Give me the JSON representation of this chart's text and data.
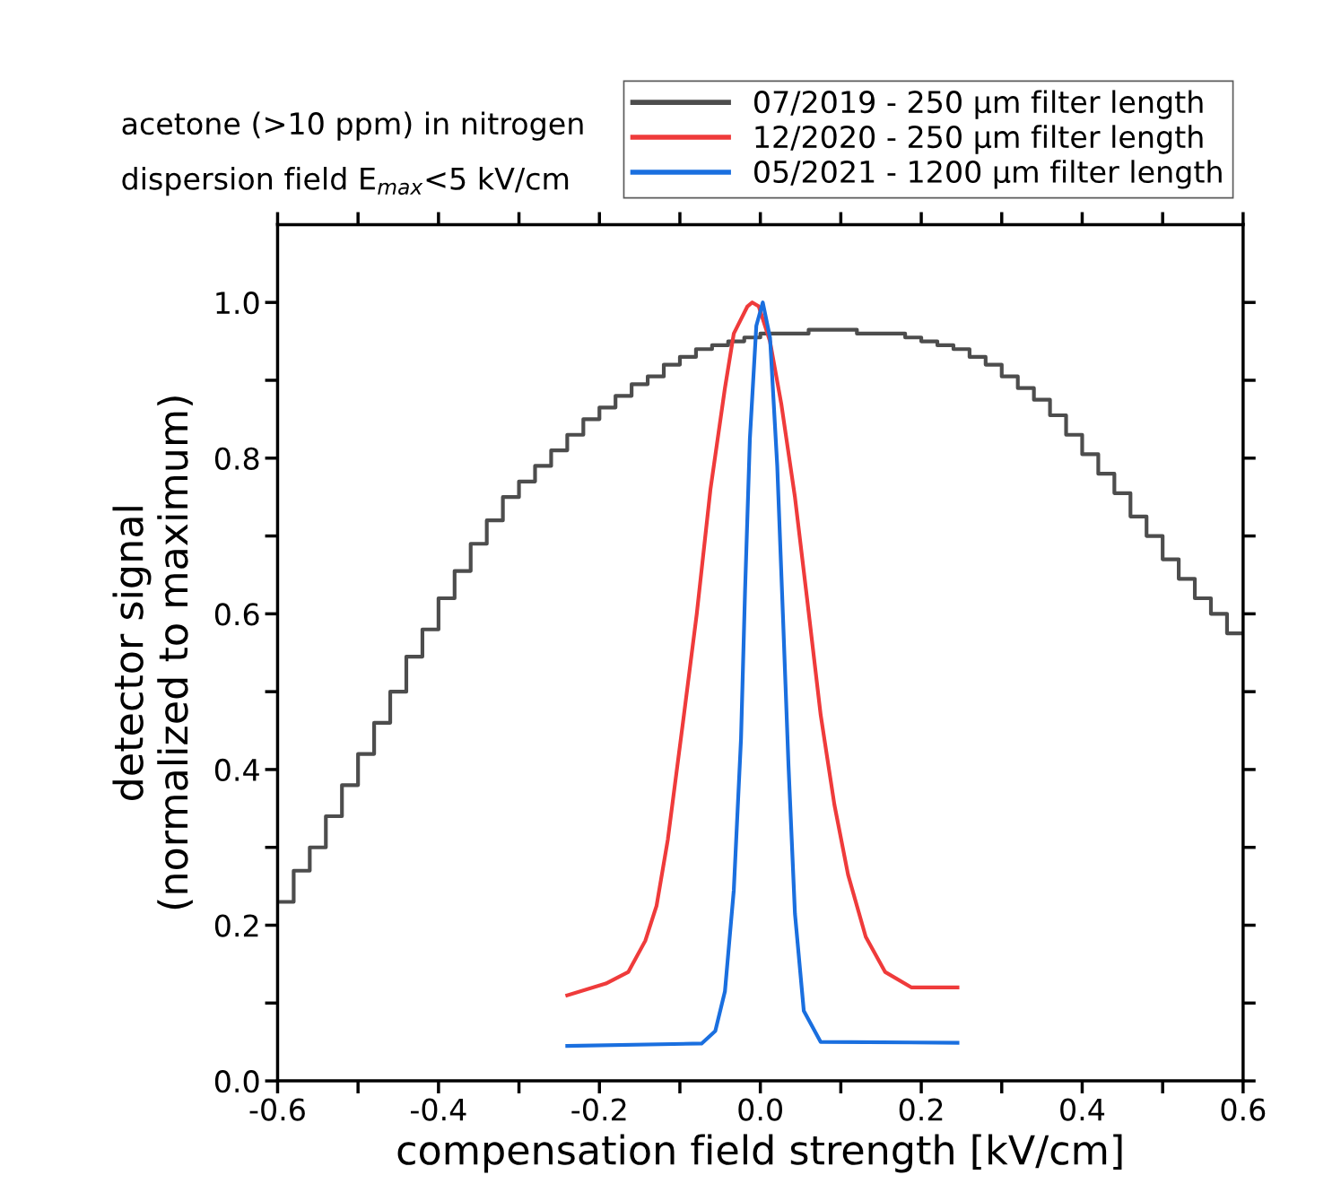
{
  "chart_data": {
    "type": "line",
    "xlabel": "compensation field strength [kV/cm]",
    "ylabel": "detector signal\n(normalized to maximum)",
    "annotations": [
      "acetone (>10 ppm) in nitrogen",
      "dispersion field E$_{max}$<5 kV/cm"
    ],
    "xlim": [
      -0.6,
      0.6
    ],
    "ylim": [
      0,
      1.1
    ],
    "xticks": [
      -0.6,
      {
        "value": -0.5,
        "label": null
      },
      -0.4,
      {
        "value": -0.3,
        "label": null
      },
      -0.2,
      {
        "value": -0.1,
        "label": null
      },
      {
        "value": 0,
        "label": "0.0"
      },
      {
        "value": 0.1,
        "label": null
      },
      0.2,
      {
        "value": 0.3,
        "label": null
      },
      0.4,
      {
        "value": 0.5,
        "label": null
      },
      0.6
    ],
    "yticks": [
      {
        "value": 0,
        "label": "0.0"
      },
      {
        "value": 0.1,
        "label": null
      },
      0.2,
      {
        "value": 0.3,
        "label": null
      },
      0.4,
      {
        "value": 0.5,
        "label": null
      },
      0.6,
      {
        "value": 0.7,
        "label": null
      },
      0.8,
      {
        "value": 0.9,
        "label": null
      },
      {
        "value": 1,
        "label": "1.0"
      }
    ],
    "legend": "top right",
    "grid": false,
    "marker": "none",
    "line_style": "solid",
    "series": [
      {
        "name": "07/2019 - 250 µm filter length",
        "color": "#4d4d4d",
        "type": "step",
        "x": [
          -0.6,
          -0.58,
          -0.56,
          -0.54,
          -0.52,
          -0.5,
          -0.48,
          -0.46,
          -0.44,
          -0.42,
          -0.4,
          -0.38,
          -0.36,
          -0.34,
          -0.32,
          -0.3,
          -0.28,
          -0.26,
          -0.24,
          -0.22,
          -0.2,
          -0.18,
          -0.16,
          -0.14,
          -0.12,
          -0.1,
          -0.08,
          -0.06,
          -0.04,
          -0.02,
          0.0,
          0.02,
          0.04,
          0.06,
          0.08,
          0.1,
          0.12,
          0.14,
          0.16,
          0.18,
          0.2,
          0.22,
          0.24,
          0.26,
          0.28,
          0.3,
          0.32,
          0.34,
          0.36,
          0.38,
          0.4,
          0.42,
          0.44,
          0.46,
          0.48,
          0.5,
          0.52,
          0.54,
          0.56,
          0.58,
          0.6
        ],
        "values": [
          0.23,
          0.27,
          0.3,
          0.34,
          0.38,
          0.42,
          0.46,
          0.5,
          0.545,
          0.58,
          0.62,
          0.655,
          0.69,
          0.72,
          0.75,
          0.77,
          0.79,
          0.81,
          0.83,
          0.85,
          0.865,
          0.88,
          0.895,
          0.905,
          0.92,
          0.93,
          0.94,
          0.945,
          0.95,
          0.955,
          0.96,
          0.96,
          0.96,
          0.965,
          0.965,
          0.965,
          0.96,
          0.96,
          0.96,
          0.955,
          0.95,
          0.945,
          0.94,
          0.93,
          0.92,
          0.905,
          0.89,
          0.875,
          0.855,
          0.83,
          0.805,
          0.78,
          0.755,
          0.725,
          0.7,
          0.67,
          0.645,
          0.62,
          0.6,
          0.575,
          0.575
        ]
      },
      {
        "name": "12/2020 - 250 µm filter length",
        "color": "#ef3b3b",
        "x": [
          -0.24,
          -0.192,
          -0.164,
          -0.143,
          -0.129,
          -0.115,
          -0.095,
          -0.079,
          -0.062,
          -0.044,
          -0.033,
          -0.016,
          -0.01,
          -0.002,
          0.012,
          0.026,
          0.043,
          0.058,
          0.075,
          0.092,
          0.109,
          0.131,
          0.155,
          0.188,
          0.245
        ],
        "values": [
          0.11,
          0.125,
          0.14,
          0.18,
          0.225,
          0.31,
          0.47,
          0.6,
          0.76,
          0.89,
          0.96,
          0.995,
          1.0,
          0.995,
          0.95,
          0.87,
          0.75,
          0.62,
          0.47,
          0.355,
          0.265,
          0.185,
          0.14,
          0.12,
          0.12
        ]
      },
      {
        "name": "05/2021 - 1200 µm filter length",
        "color": "#1a6fdf",
        "x": [
          -0.24,
          -0.073,
          -0.056,
          -0.044,
          -0.033,
          -0.024,
          -0.019,
          -0.013,
          -0.005,
          0.003,
          0.012,
          0.021,
          0.028,
          0.035,
          0.043,
          0.054,
          0.075,
          0.245
        ],
        "values": [
          0.045,
          0.048,
          0.064,
          0.115,
          0.245,
          0.44,
          0.63,
          0.825,
          0.97,
          1.0,
          0.955,
          0.79,
          0.6,
          0.405,
          0.215,
          0.09,
          0.05,
          0.049
        ]
      }
    ]
  }
}
